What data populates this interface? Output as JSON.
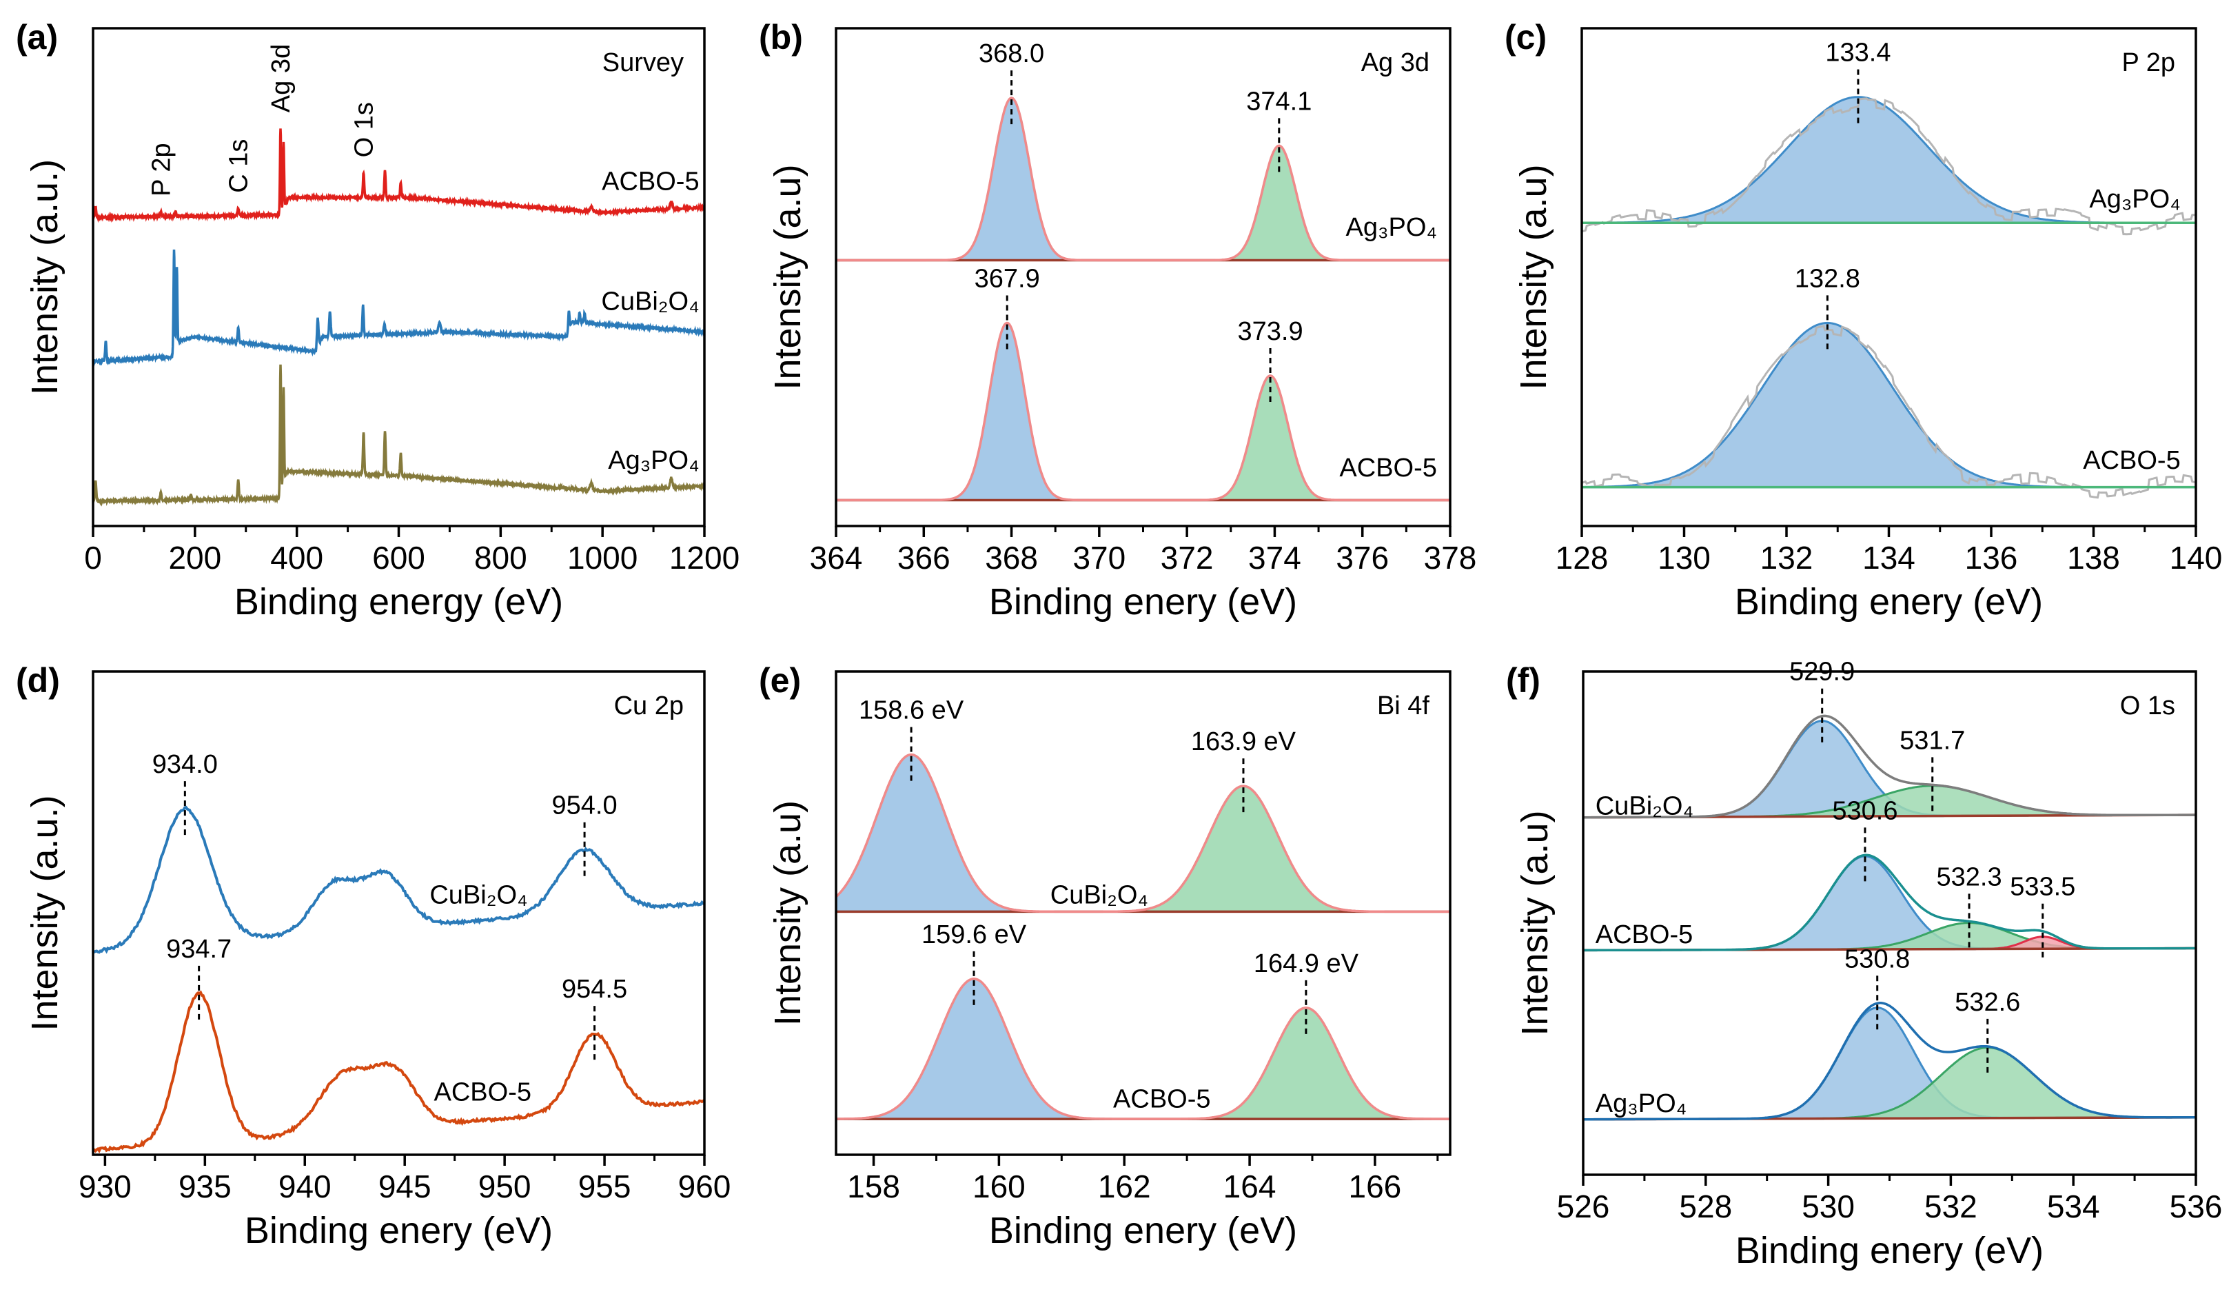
{
  "colors": {
    "survey_acbo": "#e0201b",
    "survey_cubi": "#2a7ab9",
    "survey_ag": "#857a3c",
    "fill_blue": "#9cc3e5",
    "fill_green": "#9fd9b2",
    "fill_red": "#f5a3ad",
    "stroke_blue": "#3f8cc9",
    "stroke_green": "#3aa565",
    "stroke_red": "#e0304a",
    "envelope": "#f08a8a",
    "baseline": "#9b3c2c",
    "raw_gray": "#b5b5b5",
    "cu_cubi": "#2a7ab9",
    "cu_acbo": "#d4480f",
    "fit_green_base": "#4cb87a",
    "o_cubi_env": "#7d7d7d",
    "o_acbo_env": "#1a8f8f",
    "o_ag_env": "#1f6fb0"
  },
  "chart_data": [
    {
      "type": "line",
      "label": "(a)",
      "title": "Survey",
      "xlabel": "Binding energy (eV)",
      "ylabel": "Intensity (a.u.)",
      "xlim": [
        0,
        1200
      ],
      "xticks": [
        0,
        200,
        400,
        600,
        800,
        1000,
        1200
      ],
      "minor_step": 100,
      "traces": [
        {
          "name": "ACBO-5",
          "color": "survey_acbo",
          "baseline": [
            [
              0,
              62
            ],
            [
              365,
              62.5
            ],
            [
              385,
              66
            ],
            [
              620,
              66
            ],
            [
              1000,
              63
            ],
            [
              1200,
              64
            ]
          ],
          "components": [
            [
              5,
              2,
              3
            ],
            [
              133,
              1,
              3
            ],
            [
              162,
              1,
              3
            ],
            [
              285,
              1.5,
              3
            ],
            [
              368,
              17,
              2.5
            ],
            [
              374,
              13,
              2.5
            ],
            [
              531,
              5,
              3
            ],
            [
              573,
              5.5,
              3
            ],
            [
              604,
              3,
              3
            ],
            [
              978,
              1,
              6
            ],
            [
              1135,
              1.5,
              5
            ]
          ]
        },
        {
          "name": "CuBi₂O₄",
          "color": "survey_cubi",
          "baseline": [
            [
              0,
              33
            ],
            [
              155,
              34
            ],
            [
              162,
              37
            ],
            [
              200,
              38
            ],
            [
              438,
              35
            ],
            [
              450,
              38
            ],
            [
              700,
              39
            ],
            [
              930,
              38
            ],
            [
              940,
              41
            ],
            [
              1200,
              39
            ]
          ],
          "components": [
            [
              25,
              4,
              3
            ],
            [
              159,
              20,
              2.5
            ],
            [
              164.5,
              15,
              2.5
            ],
            [
              285,
              3,
              3
            ],
            [
              441,
              6,
              3.5
            ],
            [
              465,
              5,
              3.5
            ],
            [
              530,
              6,
              3
            ],
            [
              572,
              2,
              4
            ],
            [
              680,
              2,
              5
            ],
            [
              934,
              4,
              3
            ],
            [
              955,
              2,
              3
            ],
            [
              965,
              2,
              3
            ]
          ]
        },
        {
          "name": "Ag₃PO₄",
          "color": "survey_ag",
          "baseline": [
            [
              0,
              5
            ],
            [
              365,
              5.5
            ],
            [
              380,
              11
            ],
            [
              620,
              10
            ],
            [
              1000,
              7
            ],
            [
              1200,
              8
            ]
          ],
          "components": [
            [
              5,
              4,
              3
            ],
            [
              133,
              1.5,
              3
            ],
            [
              192,
              1,
              3
            ],
            [
              285,
              4,
              3
            ],
            [
              368,
              26,
              2.5
            ],
            [
              374,
              19,
              2.5
            ],
            [
              531,
              8.5,
              3
            ],
            [
              573,
              9,
              3
            ],
            [
              604,
              4.5,
              3
            ],
            [
              978,
              1.5,
              6
            ],
            [
              1135,
              2,
              5
            ]
          ]
        }
      ],
      "annotations": [
        {
          "text": "P 2p",
          "x": 133,
          "style": "vertical"
        },
        {
          "text": "C 1s",
          "x": 285,
          "style": "vertical"
        },
        {
          "text": "Ag 3d",
          "x": 368,
          "style": "vertical"
        },
        {
          "text": "O 1s",
          "x": 531,
          "style": "vertical"
        }
      ]
    },
    {
      "type": "area",
      "label": "(b)",
      "title": "Ag 3d",
      "xlabel": "Binding enery (eV)",
      "ylabel": "Intensity (a.u)",
      "xlim": [
        364,
        378
      ],
      "xticks": [
        364,
        366,
        368,
        370,
        372,
        374,
        376,
        378
      ],
      "minor_step": 1,
      "traces": [
        {
          "name": "Ag₃PO₄",
          "baseline": [
            [
              364,
              53.4
            ],
            [
              378,
              53.4
            ]
          ],
          "components": [
            [
              368.0,
              32.6,
              0.95,
              "blue"
            ],
            [
              374.1,
              23,
              0.9,
              "green"
            ]
          ],
          "envelope": "envelope"
        },
        {
          "name": "ACBO-5",
          "baseline": [
            [
              364,
              5.2
            ],
            [
              378,
              5.2
            ]
          ],
          "components": [
            [
              367.9,
              35.6,
              0.95,
              "blue"
            ],
            [
              373.9,
              25,
              0.95,
              "green"
            ]
          ],
          "envelope": "envelope"
        }
      ],
      "annotations": [
        {
          "text": "368.0",
          "x": 368.0,
          "trace": 0
        },
        {
          "text": "374.1",
          "x": 374.1,
          "trace": 0
        },
        {
          "text": "367.9",
          "x": 367.9,
          "trace": 1
        },
        {
          "text": "373.9",
          "x": 373.9,
          "trace": 1
        }
      ]
    },
    {
      "type": "area",
      "label": "(c)",
      "title": "P 2p",
      "xlabel": "Binding enery (eV)",
      "ylabel": "Intensity (a.u)",
      "xlim": [
        128,
        140
      ],
      "xticks": [
        128,
        130,
        132,
        134,
        136,
        138,
        140
      ],
      "minor_step": 1,
      "traces": [
        {
          "name": "Ag₃PO₄",
          "baseline": [
            [
              128,
              60.9
            ],
            [
              140,
              60.9
            ]
          ],
          "components": [
            [
              133.4,
              25.3,
              3.2,
              "blue"
            ]
          ],
          "raw": true,
          "baseline_color": "fit_green_base"
        },
        {
          "name": "ACBO-5",
          "baseline": [
            [
              128,
              7.8
            ],
            [
              140,
              7.8
            ]
          ],
          "components": [
            [
              132.8,
              33,
              3.0,
              "blue"
            ]
          ],
          "raw": true,
          "baseline_color": "fit_green_base"
        }
      ],
      "annotations": [
        {
          "text": "133.4",
          "x": 133.4,
          "trace": 0
        },
        {
          "text": "132.8",
          "x": 132.8,
          "trace": 1
        }
      ]
    },
    {
      "type": "line",
      "label": "(d)",
      "title": "Cu 2p",
      "xlabel": "Binding enery (eV)",
      "ylabel": "Intensity (a.u.)",
      "xlim": [
        929.4,
        960
      ],
      "xticks": [
        930,
        935,
        940,
        945,
        950,
        955,
        960
      ],
      "minor_step": 2.5,
      "traces": [
        {
          "name": "CuBi₂O₄",
          "color": "cu_cubi",
          "baseline": [
            [
              929.4,
              42
            ],
            [
              938,
              45
            ],
            [
              960,
              52
            ]
          ],
          "components": [
            [
              934.0,
              28,
              3.0
            ],
            [
              941.5,
              10,
              2.5
            ],
            [
              944,
              11,
              2.5
            ],
            [
              954.0,
              13,
              3.0
            ]
          ]
        },
        {
          "name": "ACBO-5",
          "color": "cu_acbo",
          "baseline": [
            [
              929.4,
              1
            ],
            [
              937,
              3
            ],
            [
              960,
              11
            ]
          ],
          "components": [
            [
              934.7,
              31,
              2.4
            ],
            [
              942,
              12,
              3
            ],
            [
              944.5,
              11,
              2.5
            ],
            [
              954.5,
              16,
              2.5
            ]
          ]
        }
      ],
      "annotations": [
        {
          "text": "934.0",
          "x": 934.0,
          "trace": 0
        },
        {
          "text": "954.0",
          "x": 954.0,
          "trace": 0
        },
        {
          "text": "934.7",
          "x": 934.7,
          "trace": 1
        },
        {
          "text": "954.5",
          "x": 954.5,
          "trace": 1
        }
      ]
    },
    {
      "type": "area",
      "label": "(e)",
      "title": "Bi 4f",
      "xlabel": "Binding enery (eV)",
      "ylabel": "Intensity (a.u)",
      "xlim": [
        157.4,
        167.2
      ],
      "xticks": [
        158,
        160,
        162,
        164,
        166
      ],
      "minor_step": 1,
      "traces": [
        {
          "name": "CuBi₂O₄",
          "baseline": [
            [
              157.4,
              50.3
            ],
            [
              167.2,
              50.3
            ]
          ],
          "components": [
            [
              158.6,
              32.5,
              1.3,
              "blue"
            ],
            [
              163.9,
              26,
              1.3,
              "green"
            ]
          ],
          "envelope": "envelope"
        },
        {
          "name": "ACBO-5",
          "baseline": [
            [
              157.4,
              7.4
            ],
            [
              167.2,
              7.4
            ]
          ],
          "components": [
            [
              159.6,
              29,
              1.3,
              "blue"
            ],
            [
              164.9,
              23,
              1.2,
              "green"
            ]
          ],
          "envelope": "envelope"
        }
      ],
      "annotations": [
        {
          "text": "158.6 eV",
          "x": 158.6,
          "trace": 0
        },
        {
          "text": "163.9 eV",
          "x": 163.9,
          "trace": 0
        },
        {
          "text": "159.6 eV",
          "x": 159.6,
          "trace": 1
        },
        {
          "text": "164.9 eV",
          "x": 164.9,
          "trace": 1
        }
      ]
    },
    {
      "type": "area",
      "label": "(f)",
      "title": "O 1s",
      "xlabel": "Binding enery (eV)",
      "ylabel": "Intensity (a.u)",
      "xlim": [
        526,
        536
      ],
      "xticks": [
        526,
        528,
        530,
        532,
        534,
        536
      ],
      "minor_step": 1,
      "traces": [
        {
          "name": "CuBi₂O₄",
          "baseline": [
            [
              526,
              71
            ],
            [
              536,
              71.5
            ]
          ],
          "components": [
            [
              529.9,
              19,
              1.4,
              "blue"
            ],
            [
              531.7,
              6,
              2.2,
              "green"
            ]
          ],
          "envelope": "o_cubi_env"
        },
        {
          "name": "ACBO-5",
          "baseline": [
            [
              526,
              44.6
            ],
            [
              536,
              45
            ]
          ],
          "components": [
            [
              530.6,
              18.5,
              1.4,
              "blue"
            ],
            [
              532.3,
              5.2,
              1.6,
              "green"
            ],
            [
              533.5,
              2.4,
              0.7,
              "red"
            ]
          ],
          "envelope": "o_acbo_env"
        },
        {
          "name": "Ag₃PO₄",
          "baseline": [
            [
              526,
              11
            ],
            [
              536,
              11.4
            ]
          ],
          "components": [
            [
              530.8,
              22,
              1.4,
              "blue"
            ],
            [
              532.6,
              14,
              1.8,
              "green"
            ]
          ],
          "envelope": "o_ag_env"
        }
      ],
      "annotations": [
        {
          "text": "529.9",
          "x": 529.9,
          "trace": 0
        },
        {
          "text": "531.7",
          "x": 531.7,
          "trace": 0
        },
        {
          "text": "530.6",
          "x": 530.6,
          "trace": 1
        },
        {
          "text": "532.3",
          "x": 532.3,
          "trace": 1
        },
        {
          "text": "533.5",
          "x": 533.5,
          "trace": 1
        },
        {
          "text": "530.8",
          "x": 530.8,
          "trace": 2
        },
        {
          "text": "532.6",
          "x": 532.6,
          "trace": 2
        }
      ]
    }
  ]
}
